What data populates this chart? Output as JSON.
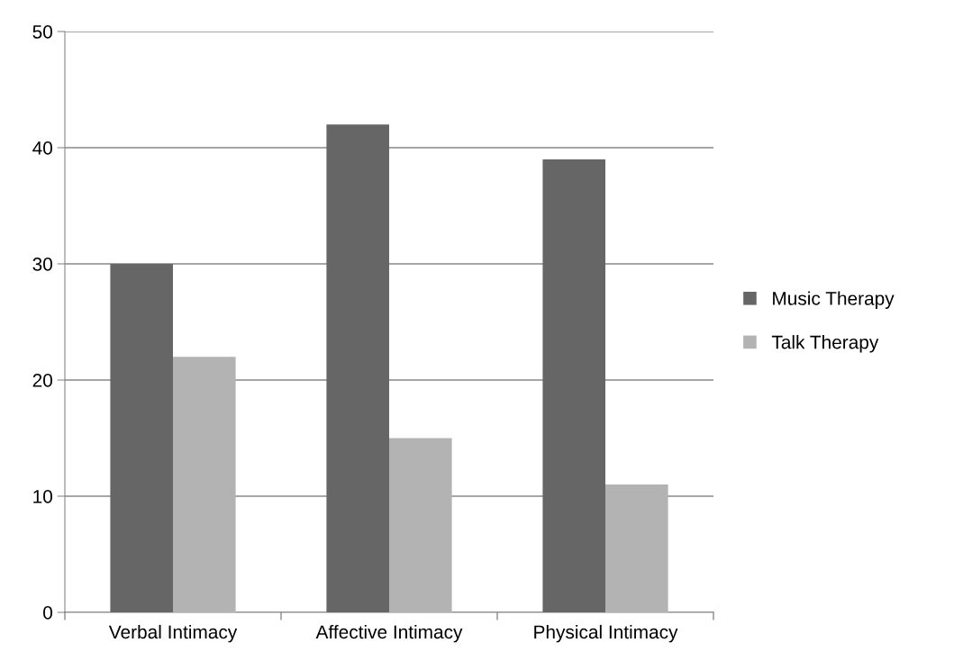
{
  "chart_data": {
    "type": "bar",
    "categories": [
      "Verbal Intimacy",
      "Affective Intimacy",
      "Physical Intimacy"
    ],
    "series": [
      {
        "name": "Music Therapy",
        "color": "#666666",
        "values": [
          30,
          42,
          39
        ]
      },
      {
        "name": "Talk Therapy",
        "color": "#b3b3b3",
        "values": [
          22,
          15,
          11
        ]
      }
    ],
    "ylim": [
      0,
      50
    ],
    "yticks": [
      0,
      10,
      20,
      30,
      40,
      50
    ],
    "grid": "y",
    "legend": "right"
  }
}
